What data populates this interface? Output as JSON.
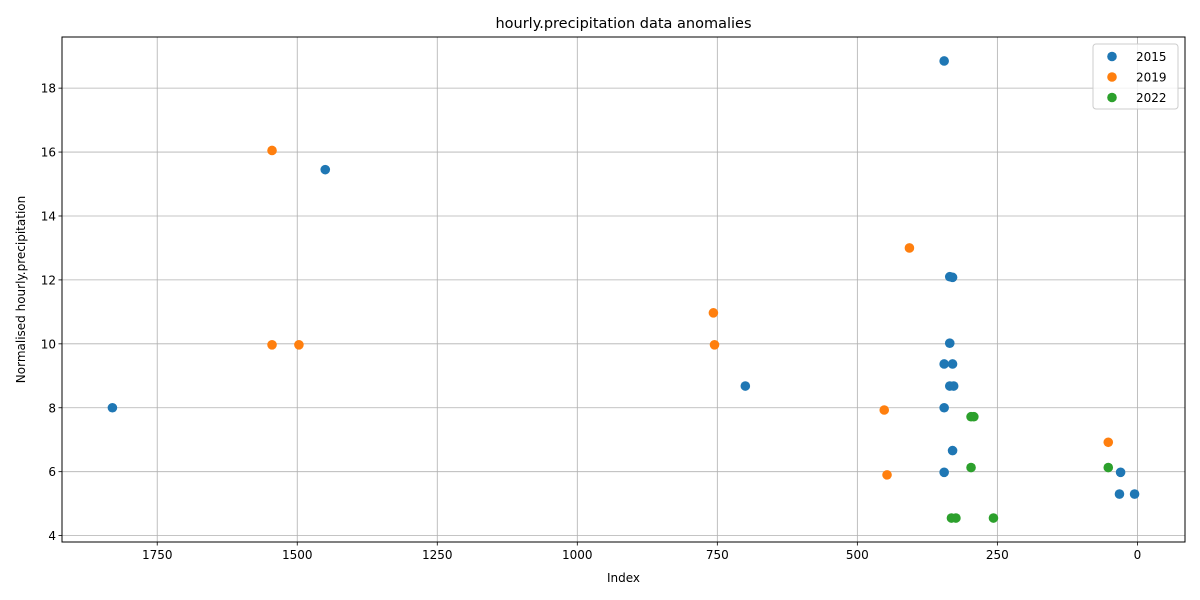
{
  "chart_data": {
    "type": "scatter",
    "title": "hourly.precipitation data anomalies",
    "xlabel": "Index",
    "ylabel": "Normalised hourly.precipitation",
    "xlim": [
      1920,
      -85
    ],
    "ylim": [
      3.8,
      19.6
    ],
    "x_inverted": true,
    "x_ticks": [
      1750,
      1500,
      1250,
      1000,
      750,
      500,
      250,
      0
    ],
    "y_ticks": [
      4,
      6,
      8,
      10,
      12,
      14,
      16,
      18
    ],
    "grid": true,
    "legend_position": "top-right",
    "series": [
      {
        "name": "2015",
        "color": "#1f77b4",
        "points": [
          {
            "x": 345,
            "y": 18.85
          },
          {
            "x": 1450,
            "y": 15.45
          },
          {
            "x": 335,
            "y": 12.1
          },
          {
            "x": 330,
            "y": 12.08
          },
          {
            "x": 335,
            "y": 10.02
          },
          {
            "x": 345,
            "y": 9.37
          },
          {
            "x": 330,
            "y": 9.37
          },
          {
            "x": 1830,
            "y": 8.0
          },
          {
            "x": 700,
            "y": 8.68
          },
          {
            "x": 335,
            "y": 8.68
          },
          {
            "x": 328,
            "y": 8.68
          },
          {
            "x": 345,
            "y": 8.0
          },
          {
            "x": 330,
            "y": 6.66
          },
          {
            "x": 345,
            "y": 5.98
          },
          {
            "x": 30,
            "y": 5.98
          },
          {
            "x": 32,
            "y": 5.3
          },
          {
            "x": 5,
            "y": 5.3
          }
        ]
      },
      {
        "name": "2019",
        "color": "#ff7f0e",
        "points": [
          {
            "x": 1545,
            "y": 16.05
          },
          {
            "x": 407,
            "y": 13.0
          },
          {
            "x": 757,
            "y": 10.97
          },
          {
            "x": 1545,
            "y": 9.97
          },
          {
            "x": 1497,
            "y": 9.97
          },
          {
            "x": 755,
            "y": 9.97
          },
          {
            "x": 452,
            "y": 7.93
          },
          {
            "x": 52,
            "y": 6.92
          },
          {
            "x": 447,
            "y": 5.9
          }
        ]
      },
      {
        "name": "2022",
        "color": "#2ca02c",
        "points": [
          {
            "x": 297,
            "y": 7.72
          },
          {
            "x": 292,
            "y": 7.72
          },
          {
            "x": 297,
            "y": 6.13
          },
          {
            "x": 52,
            "y": 6.13
          },
          {
            "x": 332,
            "y": 4.55
          },
          {
            "x": 324,
            "y": 4.55
          },
          {
            "x": 257,
            "y": 4.55
          }
        ]
      }
    ]
  }
}
